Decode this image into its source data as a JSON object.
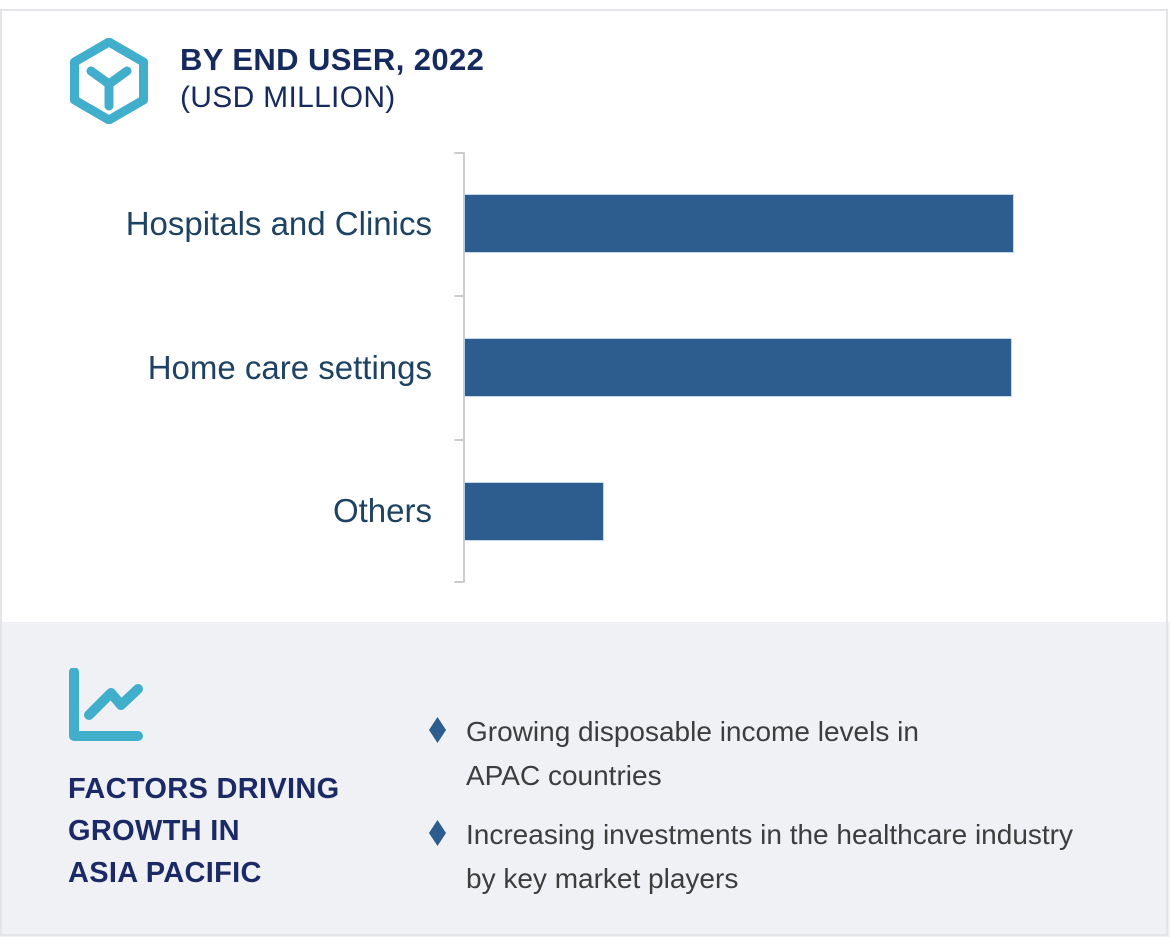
{
  "header": {
    "title_line1": "BY END USER, 2022",
    "title_line2": "(USD MILLION)"
  },
  "chart_data": {
    "type": "bar",
    "orientation": "horizontal",
    "title": "BY END USER, 2022 (USD MILLION)",
    "categories": [
      "Hospitals and Clinics",
      "Home care settings",
      "Others"
    ],
    "values": [
      100,
      99.6,
      25.2
    ],
    "values_are_relative_percent_of_longest_bar": true,
    "xlabel": "",
    "ylabel": "",
    "grid": false,
    "legend": "none",
    "bar_color": "#2d5c8e",
    "axis_color": "#cbccce"
  },
  "factors": {
    "title": "FACTORS DRIVING\nGROWTH IN\nASIA PACIFIC",
    "items": [
      "Growing disposable income levels in\nAPAC countries",
      "Increasing investments in the healthcare industry\nby key market players"
    ],
    "bullet_color": "#2d5c8e"
  },
  "colors": {
    "title_navy": "#172a5e",
    "label_blue": "#1e4264",
    "factors_navy": "#1b2a66",
    "teal_accent": "#41aecb",
    "body_text": "#3d3d3d",
    "panel_bg": "#eff1f5",
    "frame_border": "#e4e5e9"
  }
}
